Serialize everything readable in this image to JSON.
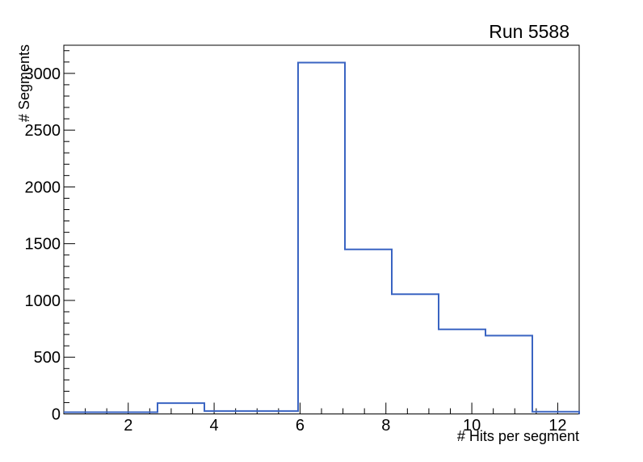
{
  "chart_data": {
    "type": "bar",
    "style": "step-histogram",
    "title": "Run 5588",
    "xlabel": "# Hits per segment",
    "ylabel": "# Segments",
    "xlim": [
      0.5,
      12.5
    ],
    "ylim": [
      0,
      3248
    ],
    "grid": false,
    "legend_position": "none",
    "bin_edges": [
      0.5,
      1.5909,
      2.6818,
      3.7727,
      4.8636,
      5.9545,
      7.0455,
      8.1364,
      9.2273,
      10.3182,
      11.4091,
      12.5
    ],
    "counts": [
      15,
      15,
      95,
      26,
      26,
      3095,
      1450,
      1055,
      745,
      690,
      20
    ],
    "x_major_ticks": [
      2,
      4,
      6,
      8,
      10,
      12
    ],
    "x_tick_labels": [
      "2",
      "4",
      "6",
      "8",
      "10",
      "12"
    ],
    "x_minor_step": 0.5,
    "y_major_ticks": [
      0,
      500,
      1000,
      1500,
      2000,
      2500,
      3000
    ],
    "y_tick_labels": [
      "0",
      "500",
      "1000",
      "1500",
      "2000",
      "2500",
      "3000"
    ],
    "y_minor_step": 100,
    "line_color": "#3a64c2",
    "frame_color": "#000000",
    "background_color": "#ffffff"
  }
}
